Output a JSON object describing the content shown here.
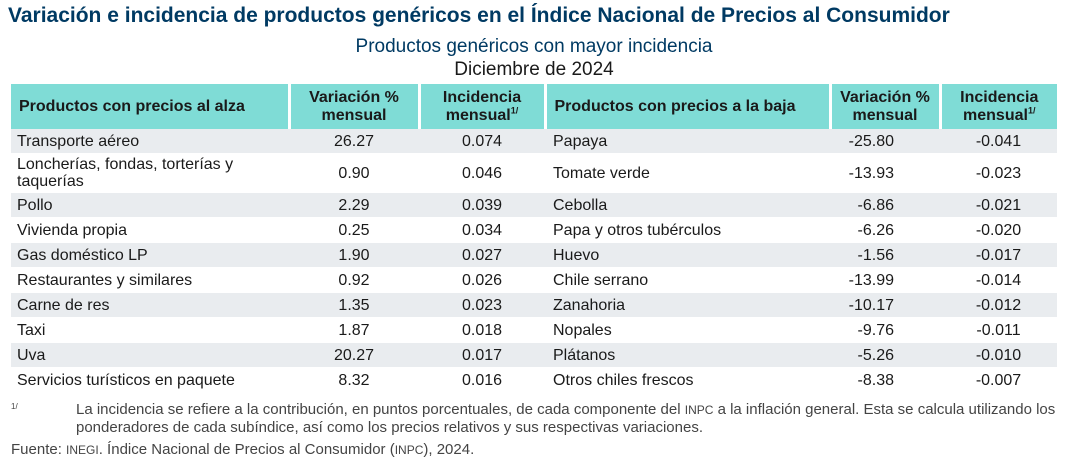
{
  "title": "Variación e incidencia de productos genéricos en el Índice Nacional de Precios al Consumidor",
  "subtitle": "Productos genéricos con mayor incidencia",
  "period": "Diciembre de 2024",
  "table": {
    "headers": {
      "rise_products": "Productos con precios al alza",
      "rise_variation": "Variación % mensual",
      "rise_incidence": "Incidencia mensual",
      "fall_products": "Productos con precios a la baja",
      "fall_variation": "Variación % mensual",
      "fall_incidence": "Incidencia mensual",
      "footnote_mark": "1/"
    },
    "rows": [
      {
        "rise_product": "Transporte aéreo",
        "rise_variation": "26.27",
        "rise_incidence": "0.074",
        "fall_product": "Papaya",
        "fall_variation": "-25.80",
        "fall_incidence": "-0.041"
      },
      {
        "rise_product": "Loncherías, fondas, torterías y taquerías",
        "rise_variation": "0.90",
        "rise_incidence": "0.046",
        "fall_product": "Tomate verde",
        "fall_variation": "-13.93",
        "fall_incidence": "-0.023"
      },
      {
        "rise_product": "Pollo",
        "rise_variation": "2.29",
        "rise_incidence": "0.039",
        "fall_product": "Cebolla",
        "fall_variation": "-6.86",
        "fall_incidence": "-0.021"
      },
      {
        "rise_product": "Vivienda propia",
        "rise_variation": "0.25",
        "rise_incidence": "0.034",
        "fall_product": "Papa y otros tubérculos",
        "fall_variation": "-6.26",
        "fall_incidence": "-0.020"
      },
      {
        "rise_product": "Gas doméstico LP",
        "rise_variation": "1.90",
        "rise_incidence": "0.027",
        "fall_product": "Huevo",
        "fall_variation": "-1.56",
        "fall_incidence": "-0.017"
      },
      {
        "rise_product": "Restaurantes y similares",
        "rise_variation": "0.92",
        "rise_incidence": "0.026",
        "fall_product": "Chile serrano",
        "fall_variation": "-13.99",
        "fall_incidence": "-0.014"
      },
      {
        "rise_product": "Carne de res",
        "rise_variation": "1.35",
        "rise_incidence": "0.023",
        "fall_product": "Zanahoria",
        "fall_variation": "-10.17",
        "fall_incidence": "-0.012"
      },
      {
        "rise_product": "Taxi",
        "rise_variation": "1.87",
        "rise_incidence": "0.018",
        "fall_product": "Nopales",
        "fall_variation": "-9.76",
        "fall_incidence": "-0.011"
      },
      {
        "rise_product": "Uva",
        "rise_variation": "20.27",
        "rise_incidence": "0.017",
        "fall_product": "Plátanos",
        "fall_variation": "-5.26",
        "fall_incidence": "-0.010"
      },
      {
        "rise_product": "Servicios turísticos en paquete",
        "rise_variation": "8.32",
        "rise_incidence": "0.016",
        "fall_product": "Otros chiles frescos",
        "fall_variation": "-8.38",
        "fall_incidence": "-0.007"
      }
    ]
  },
  "footnote": {
    "mark": "1/",
    "text_part1": "La incidencia se refiere a la contribución, en puntos porcentuales, de cada componente del ",
    "inpc": "INPC",
    "text_part2": " a la inflación general. Esta se calcula utilizando los ponderadores de cada subíndice, así como los precios relativos y sus respectivas variaciones."
  },
  "source": {
    "label": "Fuente: ",
    "inegi": "INEGI",
    "text_part1": ". Índice Nacional de Precios al Consumidor (",
    "inpc": "INPC",
    "text_part2": "), 2024."
  },
  "colors": {
    "title": "#003a63",
    "header_bg": "#7fdcd6",
    "row_stripe": "#e9ecef"
  }
}
